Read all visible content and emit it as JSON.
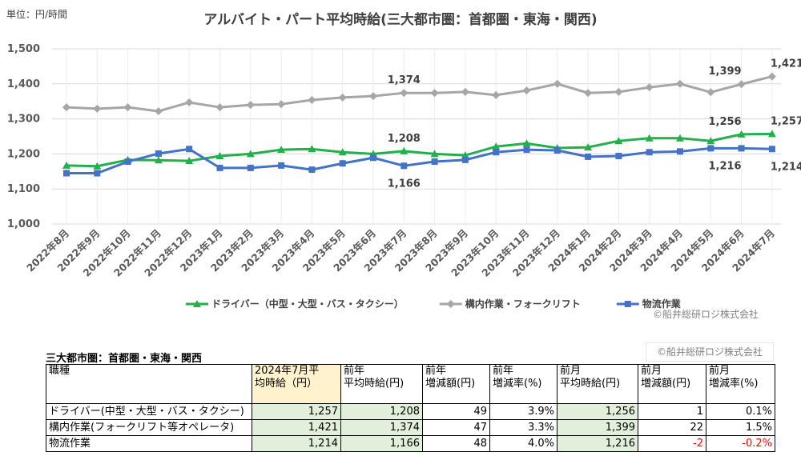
{
  "unit_note": "単位：円/時間",
  "chart_data": {
    "type": "line",
    "title": "アルバイト・パート平均時給(三大都市圏：首都圏・東海・関西)",
    "categories": [
      "2022年8月",
      "2022年9月",
      "2022年10月",
      "2022年11月",
      "2022年12月",
      "2023年1月",
      "2023年2月",
      "2023年3月",
      "2023年4月",
      "2023年5月",
      "2023年6月",
      "2023年7月",
      "2023年8月",
      "2023年9月",
      "2023年10月",
      "2023年11月",
      "2023年12月",
      "2024年1月",
      "2024年2月",
      "2024年3月",
      "2024年4月",
      "2024年5月",
      "2024年6月",
      "2024年7月"
    ],
    "series": [
      {
        "name": "ドライバー（中型・大型・バス・タクシー）",
        "color": "#22b04b",
        "marker": "triangle",
        "values": [
          1167,
          1165,
          1183,
          1182,
          1180,
          1194,
          1200,
          1212,
          1214,
          1205,
          1200,
          1208,
          1200,
          1196,
          1221,
          1230,
          1217,
          1219,
          1237,
          1245,
          1245,
          1237,
          1256,
          1257
        ],
        "value_labels": [
          null,
          null,
          null,
          null,
          null,
          null,
          null,
          null,
          null,
          null,
          null,
          "1,208",
          null,
          null,
          null,
          null,
          null,
          null,
          null,
          null,
          null,
          null,
          "1,256",
          "1,257"
        ]
      },
      {
        "name": "構内作業・フォークリフト",
        "color": "#a6a6a6",
        "marker": "diamond",
        "values": [
          1333,
          1329,
          1333,
          1322,
          1347,
          1333,
          1340,
          1342,
          1354,
          1361,
          1365,
          1374,
          1374,
          1377,
          1368,
          1381,
          1400,
          1374,
          1377,
          1390,
          1400,
          1376,
          1399,
          1421
        ],
        "value_labels": [
          null,
          null,
          null,
          null,
          null,
          null,
          null,
          null,
          null,
          null,
          null,
          "1,374",
          null,
          null,
          null,
          null,
          null,
          null,
          null,
          null,
          null,
          null,
          "1,399",
          "1,421"
        ]
      },
      {
        "name": "物流作業",
        "color": "#4472c4",
        "marker": "square",
        "values": [
          1145,
          1145,
          1178,
          1201,
          1214,
          1160,
          1160,
          1167,
          1155,
          1173,
          1189,
          1166,
          1178,
          1183,
          1205,
          1212,
          1210,
          1192,
          1194,
          1205,
          1207,
          1216,
          1216,
          1214
        ],
        "value_labels": [
          null,
          null,
          null,
          null,
          null,
          null,
          null,
          null,
          null,
          null,
          null,
          "1,166",
          null,
          null,
          null,
          null,
          null,
          null,
          null,
          null,
          null,
          null,
          "1,216",
          "1,214"
        ]
      }
    ],
    "ylim": [
      1000,
      1500
    ],
    "yticks": [
      {
        "value": 1000,
        "label": "1,000"
      },
      {
        "value": 1100,
        "label": "1,100"
      },
      {
        "value": 1200,
        "label": "1,200"
      },
      {
        "value": 1300,
        "label": "1,300"
      },
      {
        "value": 1400,
        "label": "1,400"
      },
      {
        "value": 1500,
        "label": "1,500"
      }
    ],
    "grid": true,
    "legend": "bottom"
  },
  "credit": "©船井総研ロジ株式会社",
  "table": {
    "title": "三大都市圏：首都圏・東海・関西",
    "credit": "©船井総研ロジ株式会社",
    "header": [
      [
        "職種"
      ],
      [
        "2024年7月平",
        "均時給（円）"
      ],
      [
        "前年",
        "平均時給(円)"
      ],
      [
        "前年",
        "増減額(円)"
      ],
      [
        "前年",
        "増減率(%)"
      ],
      [
        "前月",
        "平均時給(円)"
      ],
      [
        "前月",
        "増減額(円)"
      ],
      [
        "前月",
        "増減率(%)"
      ]
    ],
    "rows": [
      [
        "ドライバー(中型・大型・バス・タクシー)",
        "1,257",
        "1,208",
        "49",
        "3.9%",
        "1,256",
        "1",
        "0.1%"
      ],
      [
        "構内作業(フォークリフト等オペレータ)",
        "1,421",
        "1,374",
        "47",
        "3.3%",
        "1,399",
        "22",
        "1.5%"
      ],
      [
        "物流作業",
        "1,214",
        "1,166",
        "48",
        "4.0%",
        "1,216",
        "-2",
        "-0.2%"
      ]
    ]
  }
}
